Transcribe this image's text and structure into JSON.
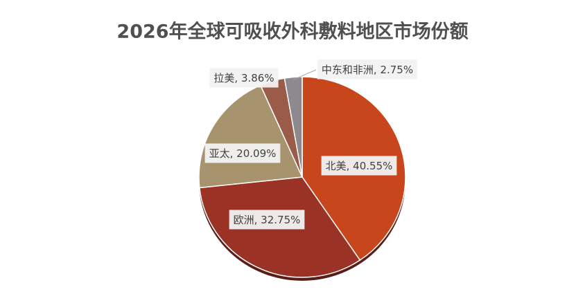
{
  "chart_data": {
    "type": "pie",
    "title": "2026年全球可吸收外科敷料地区市场份额",
    "categories": [
      "北美",
      "欧洲",
      "亚太",
      "拉美",
      "中东和非洲"
    ],
    "values": [
      40.55,
      32.75,
      20.09,
      3.86,
      2.75
    ],
    "value_labels": [
      ", 40.55%",
      ", 32.75%",
      ", 20.09%",
      ", 3.86%",
      ", 2.75%"
    ],
    "colors": [
      "#c8461b",
      "#9b3226",
      "#a8936f",
      "#9a5b48",
      "#8e898e"
    ]
  }
}
